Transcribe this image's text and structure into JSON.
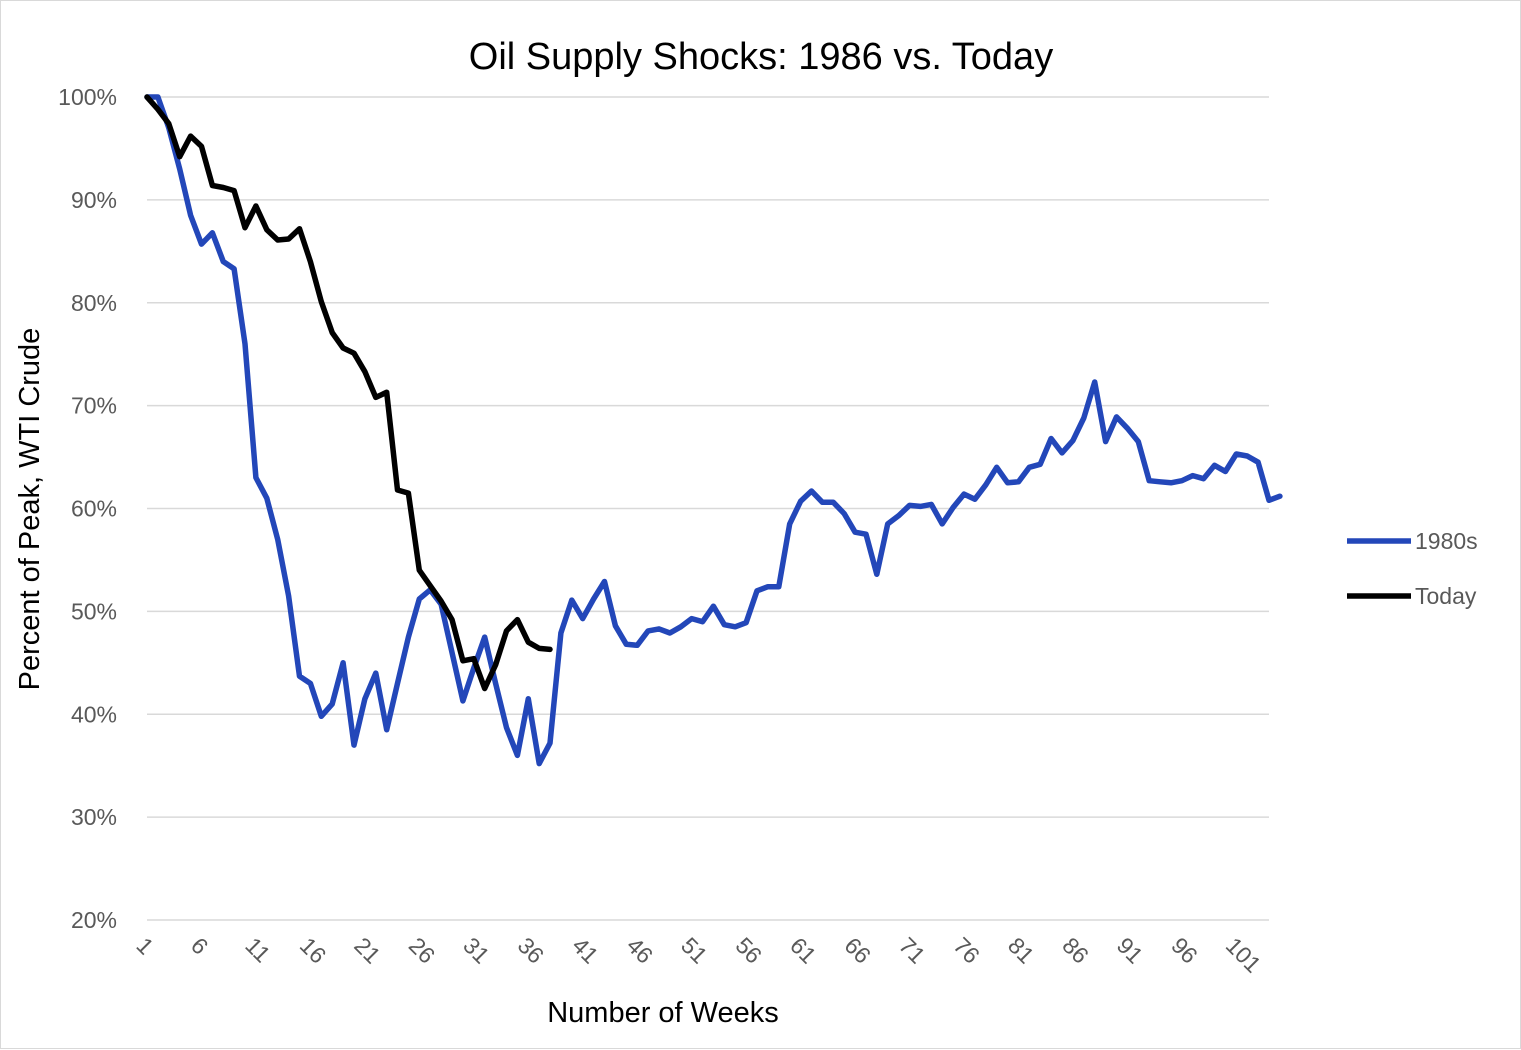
{
  "chart_data": {
    "type": "line",
    "title": "Oil Supply Shocks: 1986 vs. Today",
    "xlabel": "Number of Weeks",
    "ylabel": "Percent of Peak, WTI Crude",
    "ylim": [
      20,
      100
    ],
    "xlim": [
      1,
      104
    ],
    "y_ticks": [
      {
        "value": 100,
        "label": "100%"
      },
      {
        "value": 90,
        "label": "90%"
      },
      {
        "value": 80,
        "label": "80%"
      },
      {
        "value": 70,
        "label": "70%"
      },
      {
        "value": 60,
        "label": "60%"
      },
      {
        "value": 50,
        "label": "50%"
      },
      {
        "value": 40,
        "label": "40%"
      },
      {
        "value": 30,
        "label": "30%"
      },
      {
        "value": 20,
        "label": "20%"
      }
    ],
    "x_ticks": [
      {
        "value": 1,
        "label": "1"
      },
      {
        "value": 6,
        "label": "6"
      },
      {
        "value": 11,
        "label": "11"
      },
      {
        "value": 16,
        "label": "16"
      },
      {
        "value": 21,
        "label": "21"
      },
      {
        "value": 26,
        "label": "26"
      },
      {
        "value": 31,
        "label": "31"
      },
      {
        "value": 36,
        "label": "36"
      },
      {
        "value": 41,
        "label": "41"
      },
      {
        "value": 46,
        "label": "46"
      },
      {
        "value": 51,
        "label": "51"
      },
      {
        "value": 56,
        "label": "56"
      },
      {
        "value": 61,
        "label": "61"
      },
      {
        "value": 66,
        "label": "66"
      },
      {
        "value": 71,
        "label": "71"
      },
      {
        "value": 76,
        "label": "76"
      },
      {
        "value": 81,
        "label": "81"
      },
      {
        "value": 86,
        "label": "86"
      },
      {
        "value": 91,
        "label": "91"
      },
      {
        "value": 96,
        "label": "96"
      },
      {
        "value": 101,
        "label": "101"
      }
    ],
    "legend_position": "right",
    "series": [
      {
        "name": "1980s",
        "color": "#2347b9",
        "values": [
          100,
          100,
          97,
          93,
          88.5,
          85.7,
          86.8,
          84,
          83.3,
          76,
          63,
          61,
          57,
          51.5,
          43.7,
          43,
          39.8,
          41,
          45,
          37,
          41.5,
          44,
          38.5,
          43,
          47.5,
          51.2,
          52.1,
          50.7,
          46,
          41.3,
          44.5,
          47.5,
          43,
          38.7,
          36,
          41.5,
          35.2,
          37.2,
          47.9,
          51.1,
          49.3,
          51.2,
          52.9,
          48.6,
          46.8,
          46.7,
          48.1,
          48.3,
          47.9,
          48.5,
          49.3,
          49,
          50.5,
          48.7,
          48.5,
          48.9,
          52,
          52.4,
          52.4,
          58.5,
          60.7,
          61.7,
          60.6,
          60.6,
          59.5,
          57.7,
          57.5,
          53.6,
          58.5,
          59.3,
          60.3,
          60.2,
          60.4,
          58.5,
          60.1,
          61.4,
          60.9,
          62.3,
          64,
          62.5,
          62.6,
          64,
          64.3,
          66.8,
          65.4,
          66.6,
          68.8,
          72.3,
          66.5,
          68.9,
          67.8,
          66.5,
          62.7,
          62.6,
          62.5,
          62.7,
          63.2,
          62.9,
          64.2,
          63.6,
          65.3,
          65.1,
          64.5,
          60.8,
          61.2
        ]
      },
      {
        "name": "Today",
        "color": "#000000",
        "values": [
          100,
          98.8,
          97.4,
          94.2,
          96.2,
          95.2,
          91.4,
          91.2,
          90.9,
          87.3,
          89.4,
          87.1,
          86.1,
          86.2,
          87.2,
          84,
          80.1,
          77.1,
          75.6,
          75.1,
          73.3,
          70.8,
          71.3,
          61.8,
          61.5,
          54,
          52.5,
          51,
          49.2,
          45.2,
          45.4,
          42.5,
          44.8,
          48.1,
          49.2,
          47,
          46.4,
          46.3
        ]
      }
    ]
  }
}
